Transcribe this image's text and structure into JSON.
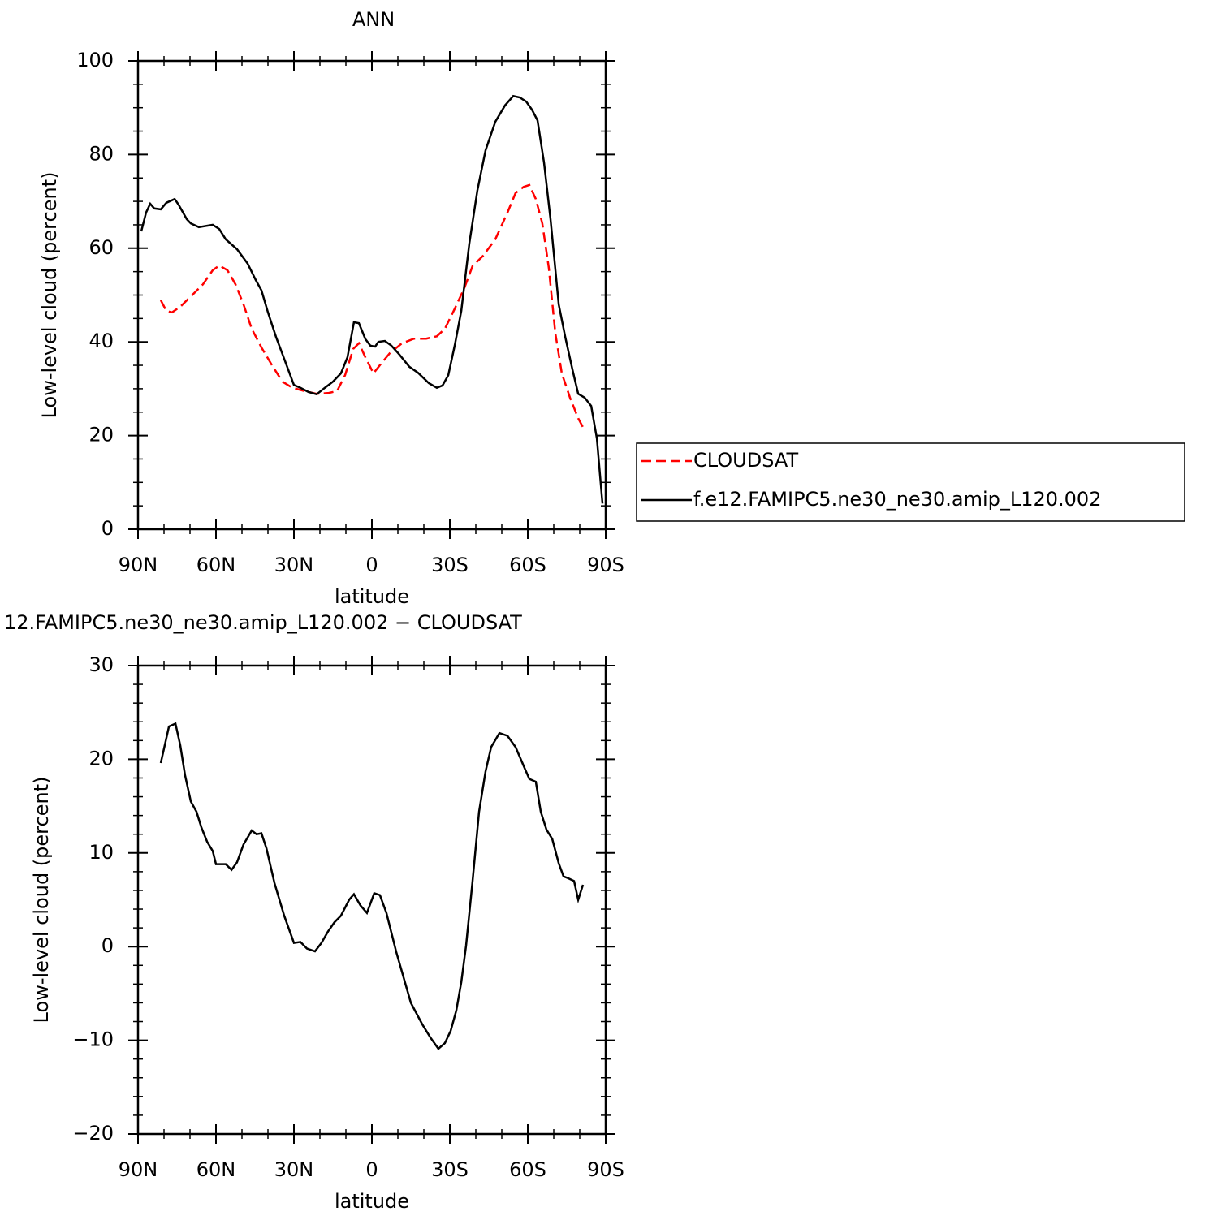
{
  "chart_data": [
    {
      "type": "line",
      "title": "ANN",
      "xlabel": "latitude",
      "ylabel": "Low-level cloud (percent)",
      "xlim": [
        90,
        -90
      ],
      "xticks": [
        {
          "value": 90,
          "label": "90N"
        },
        {
          "value": 60,
          "label": "60N"
        },
        {
          "value": 30,
          "label": "30N"
        },
        0,
        {
          "value": -30,
          "label": "30S"
        },
        {
          "value": -60,
          "label": "60S"
        },
        {
          "value": -90,
          "label": "90S"
        }
      ],
      "minor_xticks": [
        80,
        70,
        50,
        40,
        20,
        10,
        -10,
        -20,
        -40,
        -50,
        -70,
        -80
      ],
      "ylim": [
        0,
        100
      ],
      "yticks": [
        0,
        20,
        40,
        60,
        80,
        100
      ],
      "minor_yticks": [
        5,
        10,
        15,
        25,
        30,
        35,
        45,
        50,
        55,
        65,
        70,
        75,
        85,
        90,
        95
      ],
      "legend": "right",
      "series": [
        {
          "name": "CLOUDSAT",
          "color": "#ff0000",
          "linestyle": "dashed",
          "x": [
            81.25,
            79.1,
            76.9,
            73.75,
            69.7,
            65,
            61.25,
            58.75,
            55.6,
            52.5,
            49.4,
            46.25,
            42.5,
            38.4,
            34.4,
            30.6,
            25.9,
            21.25,
            16.6,
            13.4,
            10.3,
            7.2,
            5,
            2.5,
            -0.6,
            -3.75,
            -6.9,
            -11.6,
            -16.25,
            -20.9,
            -25,
            -28.1,
            -31.9,
            -35.6,
            -38.75,
            -42.8,
            -47.5,
            -52.2,
            -55.3,
            -58.4,
            -60.6,
            -63.1,
            -65.6,
            -68.1,
            -70.6,
            -73.1,
            -76.25,
            -79.4,
            -81.9
          ],
          "values": [
            48.9,
            46.6,
            46.3,
            47.5,
            49.7,
            52.3,
            55.3,
            56.3,
            55.3,
            52.3,
            48,
            42.8,
            38.8,
            35,
            31.5,
            30.2,
            29.5,
            28.9,
            29.1,
            29.5,
            32.9,
            38.5,
            39.7,
            36.7,
            33.3,
            35.5,
            37.6,
            39.7,
            40.7,
            40.7,
            41.2,
            42.8,
            47.1,
            51.5,
            56.2,
            58.4,
            61.9,
            67.6,
            71.8,
            73.1,
            73.5,
            70.5,
            65.3,
            55.8,
            41.9,
            33.3,
            28.1,
            23.7,
            21.1
          ]
        },
        {
          "name": "f.e12.FAMIPC5.ne30_ne30.amip_L120.002",
          "color": "#000000",
          "linestyle": "solid",
          "x": [
            88.75,
            86.9,
            85.3,
            83.75,
            81.25,
            79.1,
            75.9,
            74.4,
            71.25,
            69.7,
            66.6,
            63.4,
            61.25,
            58.75,
            56.25,
            51.9,
            47.8,
            44.7,
            42.5,
            40,
            36.9,
            33.75,
            30,
            27.5,
            24.4,
            21.25,
            18.1,
            15,
            11.9,
            9.4,
            6.9,
            5,
            2.5,
            0.6,
            -1.25,
            -2.5,
            -5,
            -7.5,
            -10.6,
            -14.4,
            -17.8,
            -21.9,
            -25,
            -27.2,
            -29.4,
            -31.9,
            -34.4,
            -37.5,
            -40.6,
            -43.75,
            -47.5,
            -51.25,
            -54.4,
            -56.9,
            -59.4,
            -61.6,
            -63.75,
            -66.25,
            -68.75,
            -71.9,
            -74.4,
            -77.2,
            -79.4,
            -81.9,
            -84.4,
            -86.6,
            -88.75
          ],
          "values": [
            63.6,
            67.6,
            69.5,
            68.5,
            68.3,
            69.7,
            70.5,
            69.3,
            66.2,
            65.3,
            64.5,
            64.8,
            65,
            64.1,
            61.9,
            59.8,
            56.7,
            53.2,
            51,
            46.3,
            41.1,
            36.4,
            30.8,
            30.2,
            29.3,
            28.8,
            30.2,
            31.5,
            33.3,
            36.7,
            44.2,
            44,
            40.6,
            39.2,
            39,
            40,
            40.2,
            39.2,
            37.3,
            34.7,
            33.4,
            31.2,
            30.2,
            30.7,
            32.9,
            39.3,
            46.6,
            61,
            72.3,
            80.9,
            87,
            90.5,
            92.5,
            92.2,
            91.3,
            89.6,
            87.3,
            78.3,
            66.2,
            48,
            41.1,
            34.1,
            28.9,
            28.1,
            26.3,
            19.4,
            5.5
          ]
        }
      ]
    },
    {
      "type": "line",
      "title": "12.FAMIPC5.ne30_ne30.amip_L120.002 − CLOUDSAT",
      "xlabel": "latitude",
      "ylabel": "Low-level cloud (percent)",
      "xlim": [
        90,
        -90
      ],
      "xticks": [
        {
          "value": 90,
          "label": "90N"
        },
        {
          "value": 60,
          "label": "60N"
        },
        {
          "value": 30,
          "label": "30N"
        },
        0,
        {
          "value": -30,
          "label": "30S"
        },
        {
          "value": -60,
          "label": "60S"
        },
        {
          "value": -90,
          "label": "90S"
        }
      ],
      "minor_xticks": [
        80,
        70,
        50,
        40,
        20,
        10,
        -10,
        -20,
        -40,
        -50,
        -70,
        -80
      ],
      "ylim": [
        -20,
        30
      ],
      "yticks": [
        {
          "value": -20,
          "label": "−20"
        },
        {
          "value": -10,
          "label": "−10"
        },
        0,
        10,
        20,
        30
      ],
      "minor_yticks": [
        -18,
        -16,
        -14,
        -12,
        -8,
        -6,
        -4,
        -2,
        2,
        4,
        6,
        8,
        12,
        14,
        16,
        18,
        22,
        24,
        26,
        28
      ],
      "color": "#000000",
      "x": [
        81.25,
        78.1,
        75.6,
        73.75,
        71.9,
        69.7,
        67.5,
        65.6,
        63.4,
        61.25,
        60,
        56.25,
        54,
        51.9,
        49.4,
        47.5,
        46.25,
        44.4,
        42.5,
        40.6,
        37.5,
        33.75,
        30,
        27.5,
        25,
        21.9,
        19.4,
        16.9,
        14.4,
        11.9,
        8.75,
        6.9,
        4.4,
        1.9,
        -0.9,
        -3.1,
        -5.6,
        -9.4,
        -15,
        -19.4,
        -22.5,
        -25.6,
        -28.1,
        -30.3,
        -32.5,
        -34.4,
        -36.25,
        -38.75,
        -41.25,
        -43.75,
        -45.9,
        -49.1,
        -52.2,
        -55.3,
        -58.4,
        -60.6,
        -63.1,
        -65,
        -67.2,
        -69.4,
        -71.9,
        -73.75,
        -75.6,
        -77.8,
        -79.4,
        -81.25
      ],
      "values": [
        19.6,
        23.5,
        23.8,
        21.5,
        18.3,
        15.5,
        14.4,
        12.7,
        11.2,
        10.2,
        8.8,
        8.8,
        8.2,
        9,
        10.9,
        11.8,
        12.4,
        12,
        12.1,
        10.5,
        6.8,
        3.3,
        0.4,
        0.5,
        -0.2,
        -0.5,
        0.4,
        1.6,
        2.6,
        3.3,
        5,
        5.6,
        4.4,
        3.6,
        5.7,
        5.5,
        3.6,
        -0.6,
        -6,
        -8.3,
        -9.7,
        -10.9,
        -10.3,
        -9,
        -6.8,
        -3.8,
        0.1,
        7,
        14.4,
        18.7,
        21.3,
        22.8,
        22.5,
        21.3,
        19.3,
        17.9,
        17.6,
        14.4,
        12.5,
        11.5,
        8.9,
        7.5,
        7.3,
        7,
        5,
        6.6
      ]
    }
  ]
}
